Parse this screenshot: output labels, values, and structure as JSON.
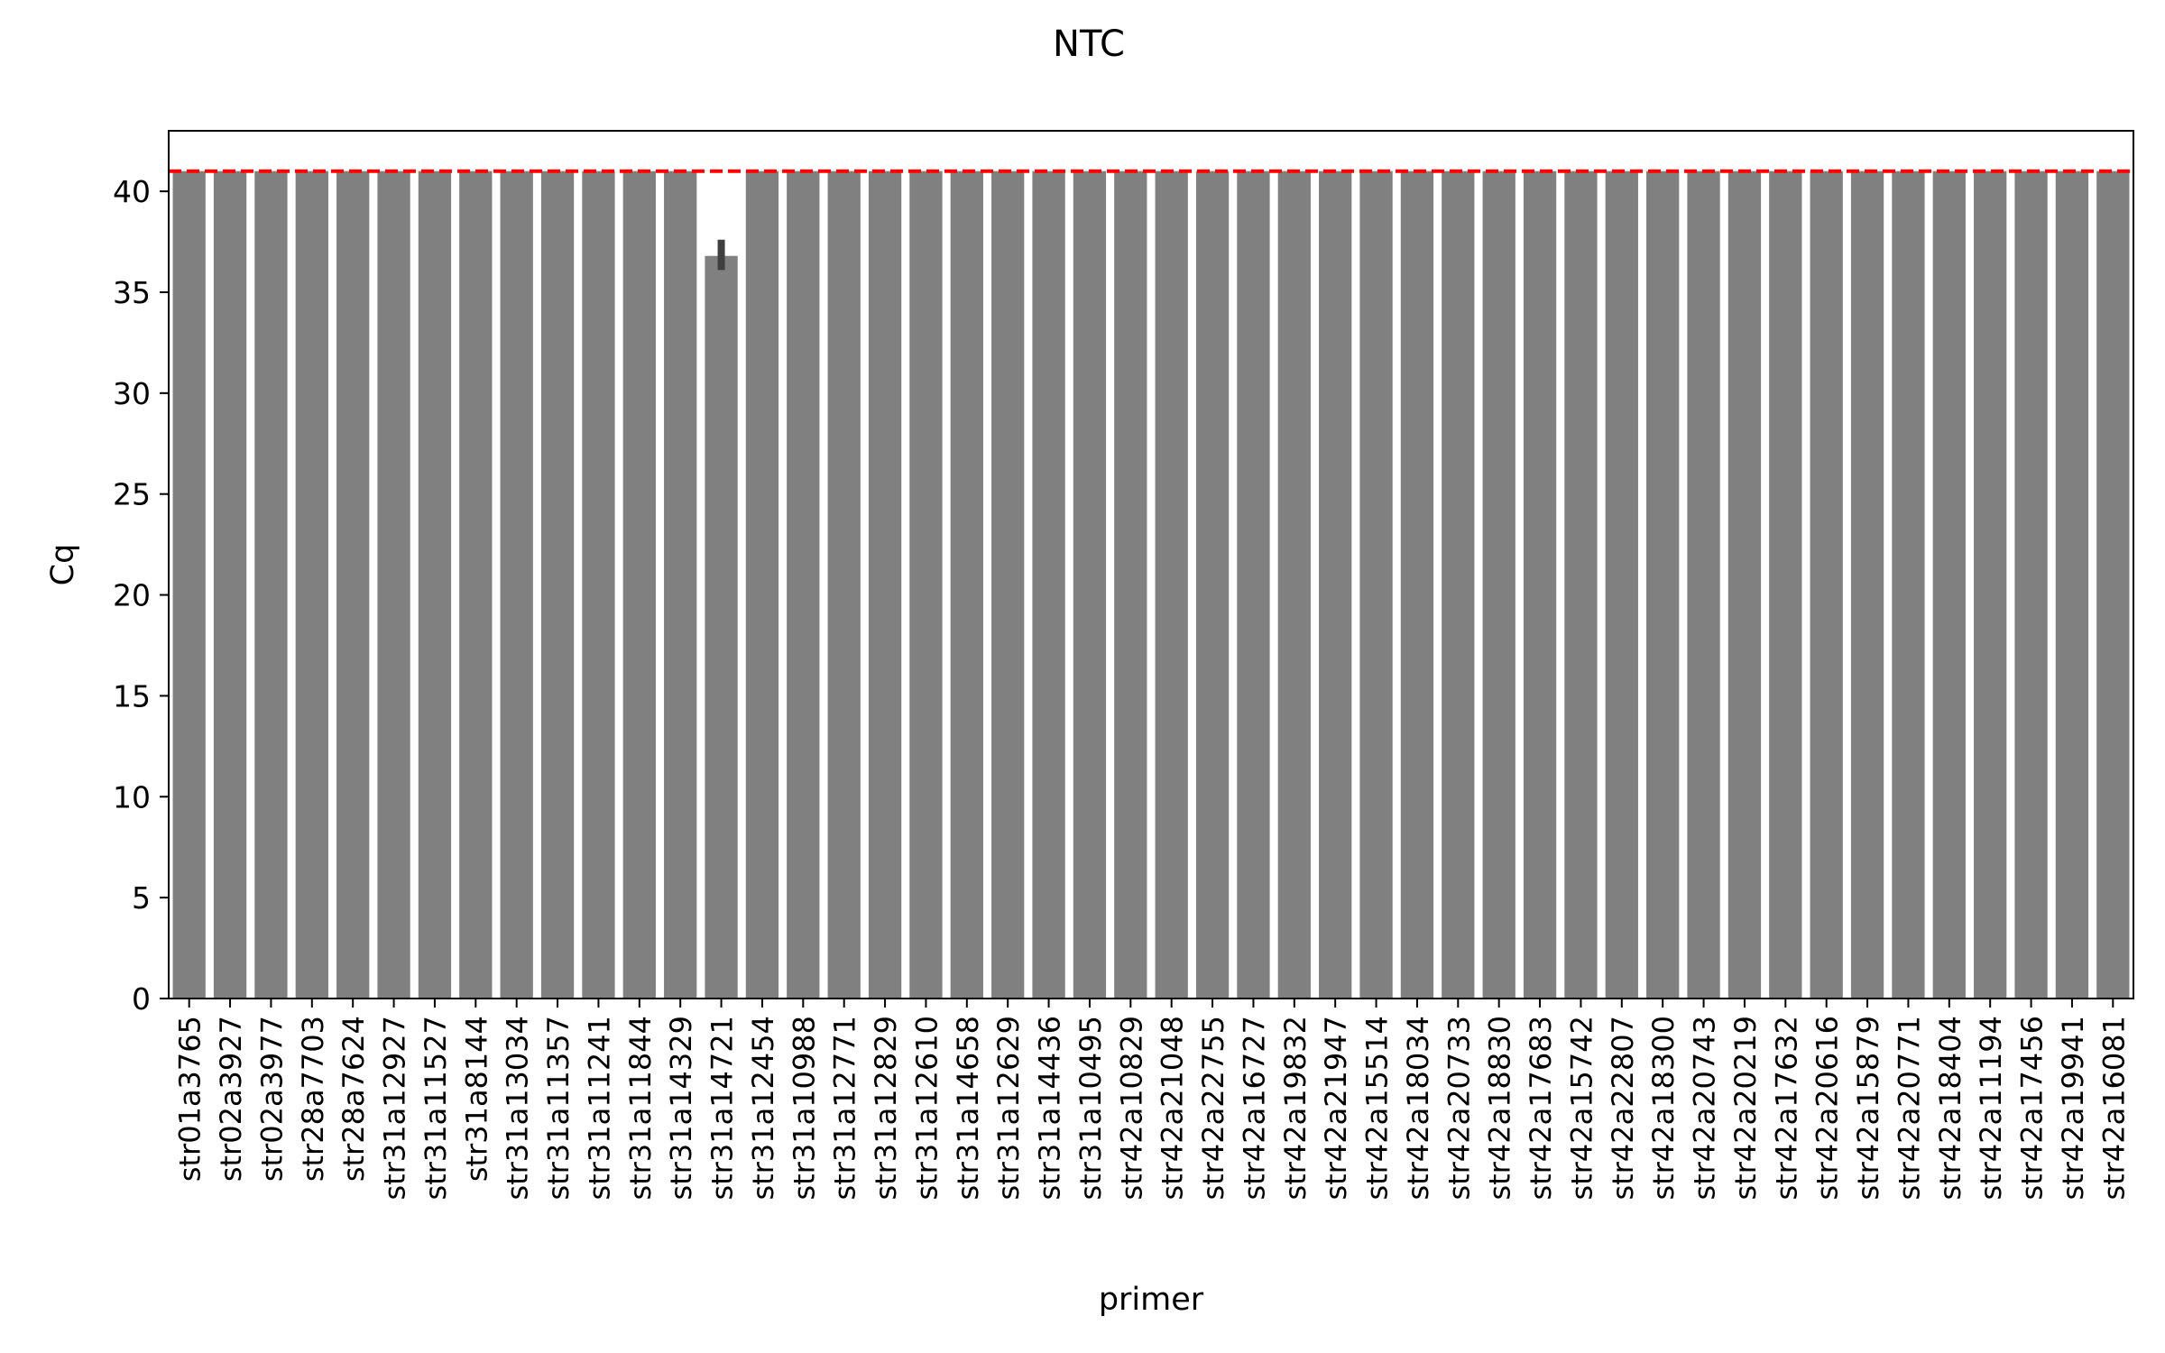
{
  "chart_data": {
    "type": "bar",
    "title": "NTC",
    "xlabel": "primer",
    "ylabel": "Cq",
    "ylim": [
      0,
      43
    ],
    "yticks": [
      0,
      5,
      10,
      15,
      20,
      25,
      30,
      35,
      40
    ],
    "grid": false,
    "legend": "none",
    "categories": [
      "str01a3765",
      "str02a3927",
      "str02a3977",
      "str28a7703",
      "str28a7624",
      "str31a12927",
      "str31a11527",
      "str31a8144",
      "str31a13034",
      "str31a11357",
      "str31a11241",
      "str31a11844",
      "str31a14329",
      "str31a14721",
      "str31a12454",
      "str31a10988",
      "str31a12771",
      "str31a12829",
      "str31a12610",
      "str31a14658",
      "str31a12629",
      "str31a14436",
      "str31a10495",
      "str42a10829",
      "str42a21048",
      "str42a22755",
      "str42a16727",
      "str42a19832",
      "str42a21947",
      "str42a15514",
      "str42a18034",
      "str42a20733",
      "str42a18830",
      "str42a17683",
      "str42a15742",
      "str42a22807",
      "str42a18300",
      "str42a20743",
      "str42a20219",
      "str42a17632",
      "str42a20616",
      "str42a15879",
      "str42a20771",
      "str42a18404",
      "str42a11194",
      "str42a17456",
      "str42a19941",
      "str42a16081"
    ],
    "values": [
      41,
      41,
      41,
      41,
      41,
      41,
      41,
      41,
      41,
      41,
      41,
      41,
      41,
      36.8,
      41,
      41,
      41,
      41,
      41,
      41,
      41,
      41,
      41,
      41,
      41,
      41,
      41,
      41,
      41,
      41,
      41,
      41,
      41,
      41,
      41,
      41,
      41,
      41,
      41,
      41,
      41,
      41,
      41,
      41,
      41,
      41,
      41,
      41
    ],
    "error_bars": [
      {
        "index": 13,
        "low": 36.1,
        "high": 37.6
      }
    ],
    "reference_line": {
      "y": 41,
      "style": "dashed"
    },
    "colors": {
      "bar": "#808080",
      "error_bar": "#3f3f3f",
      "reference_line": "#ff0000",
      "axis": "#000000"
    }
  }
}
